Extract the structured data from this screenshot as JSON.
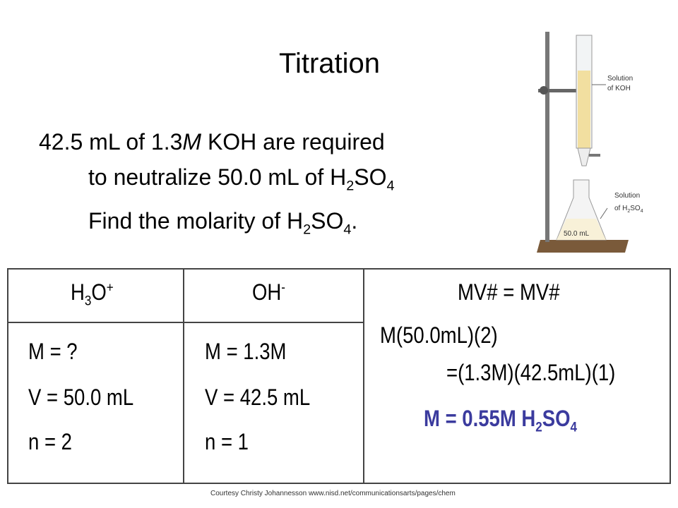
{
  "title": "Titration",
  "problem": {
    "line1": [
      "42.5 mL of 1.3",
      "M",
      " KOH are required"
    ],
    "line2": [
      "to neutralize 50.0 mL of H",
      "2",
      "SO",
      "4"
    ],
    "line3": [
      "Find the molarity of H",
      "2",
      "SO",
      "4",
      "."
    ]
  },
  "apparatus": {
    "burette_label": [
      "Solution",
      "of KOH"
    ],
    "flask_label": [
      "Solution",
      "of H",
      "2",
      "SO",
      "4"
    ],
    "volume": "50.0 mL"
  },
  "table": {
    "headers": [
      [
        "H",
        "3",
        "O",
        "+"
      ],
      [
        "OH",
        "-"
      ],
      [
        "MV# = MV#"
      ]
    ],
    "acid": [
      "M = ?",
      "V = 50.0 mL",
      "n = 2"
    ],
    "base": [
      "M = 1.3M",
      "V = 42.5 mL",
      "n = 1"
    ],
    "equation": [
      "M(50.0mL)(2)",
      "=(1.3M)(42.5mL)(1)"
    ],
    "answer": [
      "M = 0.55M H",
      "2",
      "SO",
      "4"
    ]
  },
  "credit": "Courtesy Christy Johannesson www.nisd.net/communicationsarts/pages/chem"
}
